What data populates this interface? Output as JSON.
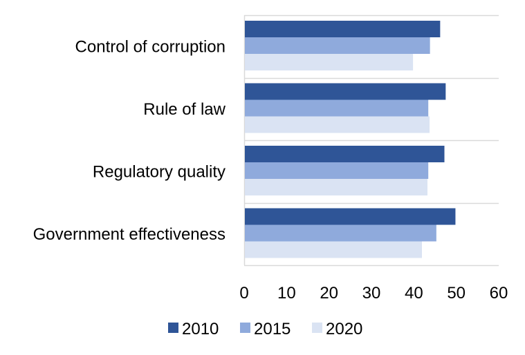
{
  "chart_data": {
    "type": "bar",
    "orientation": "horizontal",
    "title": "",
    "xlabel": "",
    "ylabel": "",
    "categories": [
      "Control of corruption",
      "Rule of law",
      "Regulatory quality",
      "Government effectiveness"
    ],
    "series": [
      {
        "name": "2010",
        "color": "#2f5597",
        "values": [
          46.2,
          47.5,
          47.2,
          49.8
        ]
      },
      {
        "name": "2015",
        "color": "#8faadc",
        "values": [
          43.8,
          43.4,
          43.4,
          45.3
        ]
      },
      {
        "name": "2020",
        "color": "#dae3f3",
        "values": [
          39.8,
          43.7,
          43.2,
          41.9
        ]
      }
    ],
    "xlim": [
      0,
      60
    ],
    "x_ticks": [
      "0",
      "10",
      "20",
      "30",
      "40",
      "50",
      "60"
    ],
    "grid": true,
    "legend_position": "bottom"
  }
}
